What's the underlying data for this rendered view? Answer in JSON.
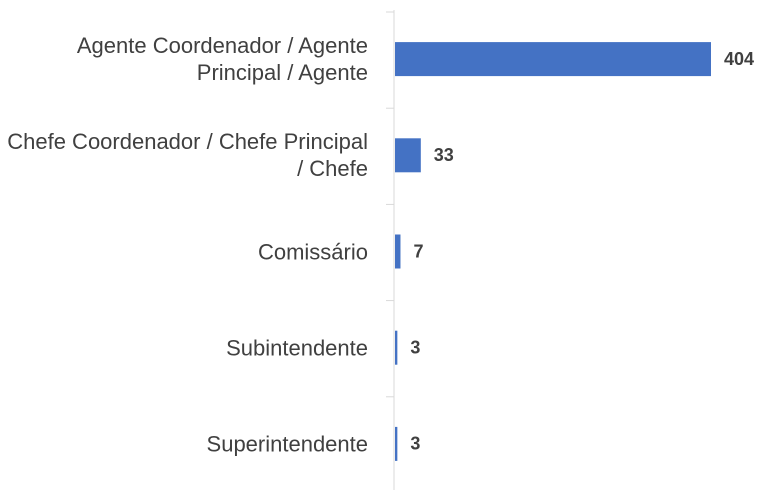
{
  "chart_data": {
    "type": "bar",
    "orientation": "horizontal",
    "categories": [
      "Agente Coordenador / Agente Principal / Agente",
      "Chefe Coordenador / Chefe Principal / Chefe",
      "Comissário",
      "Subintendente",
      "Superintendente"
    ],
    "values": [
      404,
      33,
      7,
      3,
      3
    ],
    "color": "#4472c4"
  }
}
